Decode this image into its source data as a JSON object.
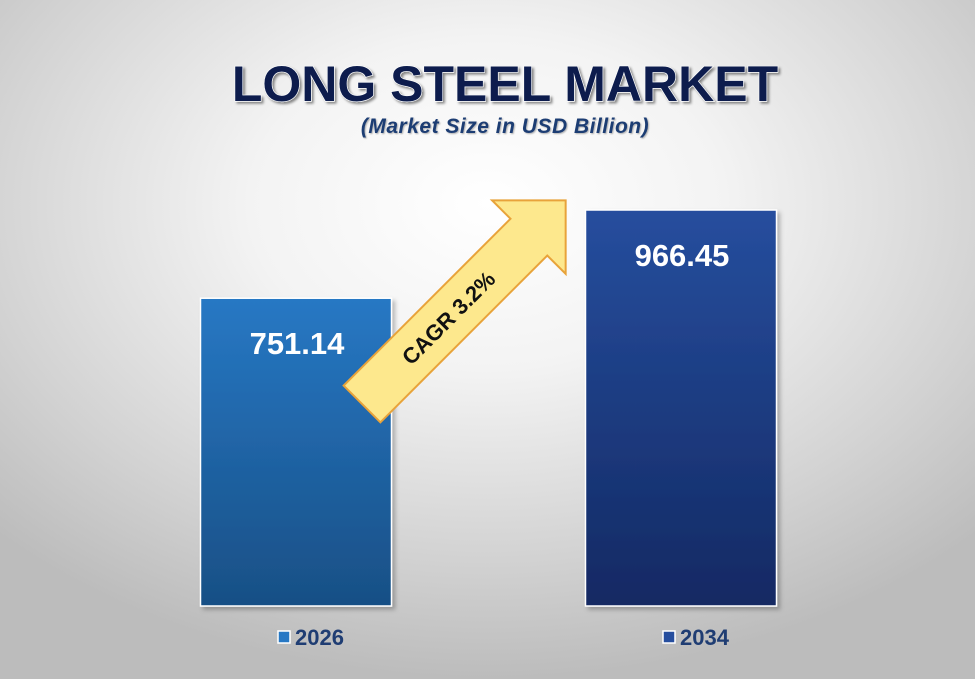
{
  "chart_data": {
    "type": "bar",
    "title": "LONG STEEL MARKET",
    "subtitle": "(Market Size in USD Billion)",
    "categories": [
      "2026",
      "2034"
    ],
    "values": [
      751.14,
      966.45
    ],
    "value_labels": [
      "751.14",
      "966.45"
    ],
    "ylim": [
      0,
      1000
    ],
    "grid": false,
    "legend_position": "bottom",
    "annotation": "CAGR 3.2%",
    "colors": {
      "bar_2026_top": "#2778c4",
      "bar_2026_bottom": "#184f85",
      "bar_2034_top": "#264e9e",
      "bar_2034_bottom": "#132963",
      "title": "#0b1d4e",
      "subtitle": "#1f3d73",
      "arrow_fill": "#fde88d",
      "arrow_stroke": "#e8a33a"
    }
  }
}
